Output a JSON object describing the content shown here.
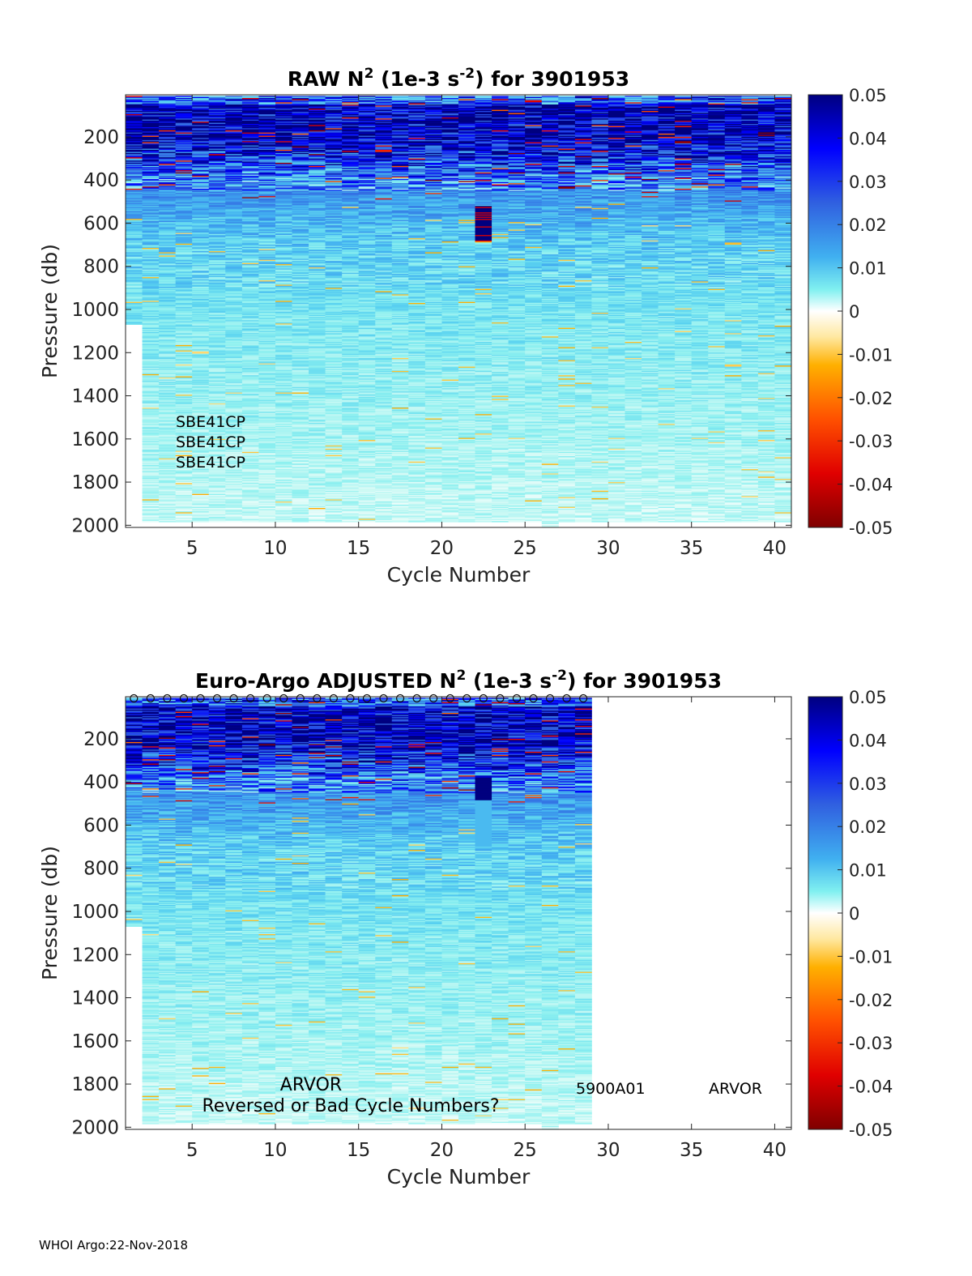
{
  "footer": "WHOI Argo:22-Nov-2018",
  "chart_data": [
    {
      "type": "heatmap",
      "title_prefix": "RAW N",
      "title_sup1": "2",
      "title_mid": " (1e-3 s",
      "title_sup2": "-2",
      "title_suffix": ") for 3901953",
      "xlabel": "Cycle Number",
      "ylabel": "Pressure (db)",
      "xlim": [
        1,
        41
      ],
      "ylim": [
        2010,
        5
      ],
      "xticks": [
        5,
        10,
        15,
        20,
        25,
        30,
        35,
        40
      ],
      "yticks": [
        200,
        400,
        600,
        800,
        1000,
        1200,
        1400,
        1600,
        1800,
        2000
      ],
      "cycles_with_data": [
        1,
        40
      ],
      "colorbar": {
        "range": [
          -0.05,
          0.05
        ],
        "ticks": [
          0.05,
          0.04,
          0.03,
          0.02,
          0.01,
          0,
          -0.01,
          -0.02,
          -0.03,
          -0.04,
          -0.05
        ],
        "tick_labels": [
          "0.05",
          "0.04",
          "0.03",
          "0.02",
          "0.01",
          "0",
          "-0.01",
          "-0.02",
          "-0.03",
          "-0.04",
          "-0.05"
        ]
      },
      "annotations": [
        "SBE41CP",
        "SBE41CP",
        "SBE41CP"
      ],
      "anomaly": {
        "cycle": 22,
        "pressure_range": [
          520,
          680
        ],
        "value": 0.05
      }
    },
    {
      "type": "heatmap",
      "title_prefix": "Euro-Argo  ADJUSTED N",
      "title_sup1": "2",
      "title_mid": " (1e-3 s",
      "title_sup2": "-2",
      "title_suffix": ") for 3901953",
      "xlabel": "Cycle Number",
      "ylabel": "Pressure (db)",
      "xlim": [
        1,
        41
      ],
      "ylim": [
        2010,
        5
      ],
      "xticks": [
        5,
        10,
        15,
        20,
        25,
        30,
        35,
        40
      ],
      "yticks": [
        200,
        400,
        600,
        800,
        1000,
        1200,
        1400,
        1600,
        1800,
        2000
      ],
      "cycles_with_data": [
        1,
        28
      ],
      "cycle_markers": "o",
      "colorbar": {
        "range": [
          -0.05,
          0.05
        ],
        "ticks": [
          0.05,
          0.04,
          0.03,
          0.02,
          0.01,
          0,
          -0.01,
          -0.02,
          -0.03,
          -0.04,
          -0.05
        ],
        "tick_labels": [
          "0.05",
          "0.04",
          "0.03",
          "0.02",
          "0.01",
          "0",
          "-0.01",
          "-0.02",
          "-0.03",
          "-0.04",
          "-0.05"
        ]
      },
      "annotations": {
        "float_type": "ARVOR",
        "warning": "Reversed or Bad Cycle Numbers?",
        "wmo_inst": "5900A01",
        "platform": "ARVOR"
      },
      "anomaly": {
        "cycle": 22,
        "pressure_range": [
          380,
          480
        ],
        "value": 0.05
      }
    }
  ]
}
